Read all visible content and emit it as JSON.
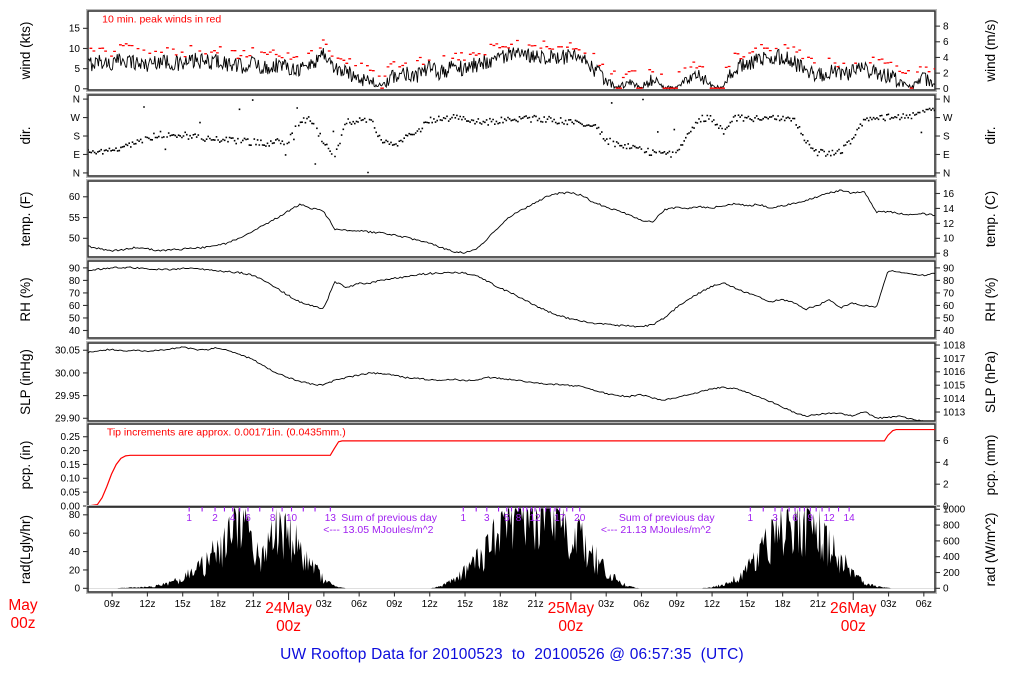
{
  "title": "UW Rooftop Data for 20100523  to  20100526 @ 06:57:35  (UTC)",
  "clipped_left_date": {
    "line1": "May",
    "line2": "00z"
  },
  "colors": {
    "red": "#FF0000",
    "purple": "#A020F0",
    "blue": "#0B0BDC",
    "black": "#000000",
    "frame": "#333333"
  },
  "chart_data": {
    "type": "line",
    "subtype": "multi-panel-meteogram",
    "x_axis": {
      "t_min": 0,
      "t_max": 72,
      "hour_ticks": [
        [
          2.05,
          "09z"
        ],
        [
          5.05,
          "12z"
        ],
        [
          8.05,
          "15z"
        ],
        [
          11.05,
          "18z"
        ],
        [
          14.05,
          "21z"
        ],
        [
          20.05,
          "03z"
        ],
        [
          23.05,
          "06z"
        ],
        [
          26.05,
          "09z"
        ],
        [
          29.05,
          "12z"
        ],
        [
          32.05,
          "15z"
        ],
        [
          35.05,
          "18z"
        ],
        [
          38.05,
          "21z"
        ],
        [
          44.05,
          "03z"
        ],
        [
          47.05,
          "06z"
        ],
        [
          50.05,
          "09z"
        ],
        [
          53.05,
          "12z"
        ],
        [
          56.05,
          "15z"
        ],
        [
          59.05,
          "18z"
        ],
        [
          62.05,
          "21z"
        ],
        [
          68.05,
          "03z"
        ],
        [
          71.05,
          "06z"
        ]
      ],
      "date_ticks": [
        [
          17.05,
          "24May",
          "00z"
        ],
        [
          41.05,
          "25May",
          "00z"
        ],
        [
          65.05,
          "26May",
          "00z"
        ]
      ]
    },
    "panels": [
      {
        "id": "wind",
        "left_label": "wind (kts)",
        "right_label": "wind (m/s)",
        "vmin": -0.3,
        "vmax": 19.3,
        "rvmin": -0.154,
        "rvmax": 9.93,
        "lticks": [
          [
            0,
            "0"
          ],
          [
            5,
            "5"
          ],
          [
            10,
            "10"
          ],
          [
            15,
            "15"
          ]
        ],
        "rticks": [
          [
            0,
            "0"
          ],
          [
            2,
            "2"
          ],
          [
            4,
            "4"
          ],
          [
            6,
            "6"
          ],
          [
            8,
            "8"
          ]
        ],
        "note": {
          "t": 1.2,
          "text": "10 min. peak winds in red"
        },
        "series": [
          {
            "name": "wind-sustained",
            "type": "jline",
            "key": "wind_kts",
            "amp": 2.0,
            "dt": 0.08,
            "scale_amp": true
          },
          {
            "name": "wind-10min-peaks",
            "type": "peaks",
            "key": "wind_kts",
            "dt": 0.25
          }
        ]
      },
      {
        "id": "dir",
        "left_label": "dir.",
        "right_label": "dir.",
        "vmin": -15,
        "vmax": 380,
        "rvmin": -15,
        "rvmax": 380,
        "lticks": [
          [
            360,
            "N"
          ],
          [
            270,
            "W"
          ],
          [
            180,
            "S"
          ],
          [
            90,
            "E"
          ],
          [
            0,
            "N"
          ]
        ],
        "rticks": [
          [
            360,
            "N"
          ],
          [
            270,
            "W"
          ],
          [
            180,
            "S"
          ],
          [
            90,
            "E"
          ],
          [
            0,
            "N"
          ]
        ],
        "series": [
          {
            "name": "wind-direction",
            "type": "scatter",
            "key": "dir_deg",
            "amp": 16,
            "dt": 0.14,
            "outlier": 0.035
          }
        ]
      },
      {
        "id": "temp",
        "left_label": "temp. (F)",
        "right_label": "temp. (C)",
        "vmin": 45.5,
        "vmax": 63.8,
        "rvmin": 7.5,
        "rvmax": 17.67,
        "lticks": [
          [
            50,
            "50"
          ],
          [
            55,
            "55"
          ],
          [
            60,
            "60"
          ]
        ],
        "rticks": [
          [
            8,
            "8"
          ],
          [
            10,
            "10"
          ],
          [
            12,
            "12"
          ],
          [
            14,
            "14"
          ],
          [
            16,
            "16"
          ]
        ],
        "series": [
          {
            "name": "temperature",
            "type": "jline",
            "key": "temp_f",
            "amp": 0.22,
            "dt": 0.15
          }
        ]
      },
      {
        "id": "rh",
        "left_label": "RH (%)",
        "right_label": "RH (%)",
        "vmin": 34,
        "vmax": 95.5,
        "rvmin": 34,
        "rvmax": 95.5,
        "lticks": [
          [
            40,
            "40"
          ],
          [
            50,
            "50"
          ],
          [
            60,
            "60"
          ],
          [
            70,
            "70"
          ],
          [
            80,
            "80"
          ],
          [
            90,
            "90"
          ]
        ],
        "rticks": [
          [
            40,
            "40"
          ],
          [
            50,
            "50"
          ],
          [
            60,
            "60"
          ],
          [
            70,
            "70"
          ],
          [
            80,
            "80"
          ],
          [
            90,
            "90"
          ]
        ],
        "series": [
          {
            "name": "relative-humidity",
            "type": "jline",
            "key": "rh_pct",
            "amp": 0.7,
            "dt": 0.15
          }
        ]
      },
      {
        "id": "slp",
        "left_label": "SLP (inHg)",
        "right_label": "SLP (hPa)",
        "vmin": 29.894,
        "vmax": 30.066,
        "rvmin": 1012.33,
        "rvmax": 1018.15,
        "lticks": [
          [
            29.9,
            "29.90"
          ],
          [
            29.95,
            "29.95"
          ],
          [
            30.0,
            "30.00"
          ],
          [
            30.05,
            "30.05"
          ]
        ],
        "rticks": [
          [
            1013,
            "1013"
          ],
          [
            1014,
            "1014"
          ],
          [
            1015,
            "1015"
          ],
          [
            1016,
            "1016"
          ],
          [
            1017,
            "1017"
          ],
          [
            1018,
            "1018"
          ]
        ],
        "series": [
          {
            "name": "sea-level-pressure",
            "type": "jline",
            "key": "slp_inhg",
            "amp": 0.0016,
            "dt": 0.15
          }
        ]
      },
      {
        "id": "pcp",
        "left_label": "pcp. (in)",
        "right_label": "pcp. (mm)",
        "vmin": 0,
        "vmax": 0.296,
        "rvmin": 0,
        "rvmax": 7.52,
        "lticks": [
          [
            0,
            "0.00"
          ],
          [
            0.05,
            "0.05"
          ],
          [
            0.1,
            "0.10"
          ],
          [
            0.15,
            "0.15"
          ],
          [
            0.2,
            "0.20"
          ],
          [
            0.25,
            "0.25"
          ]
        ],
        "rticks": [
          [
            0,
            "0"
          ],
          [
            2,
            "2"
          ],
          [
            4,
            "4"
          ],
          [
            6,
            "6"
          ]
        ],
        "note": {
          "t": 1.6,
          "text": "Tip increments are approx. 0.00171in. (0.0435mm.)"
        },
        "series": [
          {
            "name": "cumulative-precip",
            "type": "points_line",
            "key": "pcp_points"
          }
        ]
      },
      {
        "id": "rad",
        "left_label": "rad(Lgly/hr)",
        "right_label": "rad (W/m^2)",
        "vmin": -4,
        "vmax": 88.5,
        "rvmin": -46.5,
        "rvmax": 1029,
        "lticks": [
          [
            0,
            "0"
          ],
          [
            20,
            "20"
          ],
          [
            40,
            "40"
          ],
          [
            60,
            "60"
          ],
          [
            80,
            "80"
          ]
        ],
        "rticks": [
          [
            0,
            "0"
          ],
          [
            200,
            "200"
          ],
          [
            400,
            "400"
          ],
          [
            600,
            "600"
          ],
          [
            800,
            "800"
          ],
          [
            1000,
            "1000"
          ]
        ],
        "mj_marks": [
          [
            8.6,
            "1"
          ],
          [
            9.7,
            ""
          ],
          [
            10.8,
            "2"
          ],
          [
            11.6,
            ""
          ],
          [
            12.3,
            "4"
          ],
          [
            12.9,
            ""
          ],
          [
            13.6,
            "6"
          ],
          [
            14.6,
            ""
          ],
          [
            15.7,
            "8"
          ],
          [
            16.5,
            ""
          ],
          [
            17.3,
            "10"
          ],
          [
            18.3,
            ""
          ],
          [
            19.3,
            ""
          ],
          [
            20.6,
            "13"
          ],
          [
            31.9,
            "1"
          ],
          [
            33.0,
            ""
          ],
          [
            33.9,
            "3"
          ],
          [
            34.9,
            ""
          ],
          [
            35.6,
            "5"
          ],
          [
            36.0,
            ""
          ],
          [
            36.6,
            "8"
          ],
          [
            37.0,
            ""
          ],
          [
            37.3,
            ""
          ],
          [
            37.7,
            ""
          ],
          [
            38.0,
            "12"
          ],
          [
            38.4,
            ""
          ],
          [
            38.9,
            ""
          ],
          [
            39.3,
            ""
          ],
          [
            39.7,
            ""
          ],
          [
            40.1,
            "17"
          ],
          [
            40.7,
            ""
          ],
          [
            41.2,
            ""
          ],
          [
            41.8,
            "20"
          ],
          [
            56.3,
            "1"
          ],
          [
            57.4,
            ""
          ],
          [
            58.4,
            "3"
          ],
          [
            59.0,
            ""
          ],
          [
            59.6,
            ""
          ],
          [
            60.1,
            "6"
          ],
          [
            60.5,
            ""
          ],
          [
            60.9,
            ""
          ],
          [
            61.4,
            "9"
          ],
          [
            61.9,
            ""
          ],
          [
            62.4,
            ""
          ],
          [
            63.0,
            "12"
          ],
          [
            63.8,
            ""
          ],
          [
            64.7,
            "14"
          ]
        ],
        "sum_labels": [
          [
            20.0,
            "Sum of previous day",
            "<--- 13.05 MJoules/m^2"
          ],
          [
            43.6,
            "Sum of previous day",
            "<--- 21.13 MJoules/m^2"
          ]
        ],
        "series": [
          {
            "name": "solar-radiation",
            "type": "area",
            "key": "rad_lgly",
            "dt": 0.1
          }
        ]
      }
    ],
    "series_data": {
      "t_step_hours": 1,
      "wind_kts": [
        6,
        7,
        6,
        7.5,
        6.5,
        6,
        7,
        6.5,
        6,
        7,
        6.5,
        7,
        6,
        5.5,
        6.5,
        5,
        6,
        5.5,
        5,
        6,
        9,
        5,
        4,
        3,
        2,
        0.5,
        3,
        4,
        3.5,
        5,
        4,
        5.5,
        5,
        6,
        7,
        8,
        8.5,
        8,
        8.5,
        8,
        7.5,
        8,
        7,
        5,
        2,
        0.3,
        1.5,
        0.3,
        2.5,
        0.3,
        0.3,
        2,
        3.5,
        0.5,
        0.3,
        5,
        6.5,
        7,
        7.5,
        8,
        6.5,
        5,
        3,
        4.5,
        3.5,
        4,
        5,
        4,
        3,
        2,
        0.3,
        2.5,
        1.5
      ],
      "dir_deg": [
        100,
        105,
        110,
        120,
        150,
        170,
        185,
        190,
        185,
        175,
        170,
        165,
        160,
        155,
        150,
        145,
        150,
        155,
        250,
        260,
        150,
        90,
        250,
        255,
        265,
        150,
        130,
        180,
        200,
        260,
        265,
        270,
        265,
        255,
        250,
        255,
        265,
        260,
        265,
        260,
        255,
        250,
        245,
        240,
        160,
        140,
        130,
        120,
        95,
        90,
        95,
        180,
        265,
        270,
        200,
        265,
        270,
        265,
        270,
        268,
        265,
        150,
        100,
        95,
        105,
        170,
        265,
        275,
        270,
        272,
        278,
        290,
        310
      ],
      "temp_f": [
        48,
        47.5,
        47,
        47.2,
        47.8,
        47.5,
        47,
        47.2,
        47.4,
        47.6,
        47.8,
        48.2,
        49,
        50.2,
        51.8,
        53.2,
        54.8,
        56.5,
        58.2,
        57.2,
        56.6,
        52.2,
        52,
        51.8,
        51.5,
        51.2,
        50.8,
        50.2,
        49.6,
        48.8,
        47.8,
        46.8,
        46.5,
        47.5,
        50,
        53,
        55.5,
        57,
        58.5,
        60,
        60.8,
        61,
        60.3,
        58.6,
        57.6,
        56.6,
        55.6,
        54.4,
        53.9,
        56.8,
        57.4,
        57.1,
        57.7,
        57.3,
        57.9,
        58.3,
        57.8,
        58.2,
        57.4,
        57.8,
        58.4,
        59,
        60,
        61,
        61.5,
        60.8,
        61.2,
        56.3,
        56.4,
        56,
        55.7,
        55.9,
        55.6
      ],
      "rh_pct": [
        88,
        89,
        90,
        90.5,
        90,
        89.5,
        89,
        88.5,
        89.5,
        90,
        88.5,
        87.5,
        87,
        86,
        84,
        80,
        74,
        68,
        63,
        60,
        57,
        79,
        74,
        77.5,
        78,
        80,
        81.5,
        83,
        84.5,
        85.5,
        86,
        86.5,
        86,
        84,
        79,
        74,
        70,
        65,
        60,
        55.5,
        52,
        49.5,
        47.5,
        45.5,
        45,
        44,
        43.8,
        43,
        44.5,
        50,
        58,
        65,
        70,
        75,
        78,
        74,
        70,
        67,
        63,
        65,
        62,
        57,
        60,
        64,
        58,
        62,
        60,
        58,
        88,
        87,
        84.5,
        84,
        86
      ],
      "slp_inhg": [
        30.045,
        30.05,
        30.052,
        30.048,
        30.05,
        30.047,
        30.05,
        30.053,
        30.057,
        30.052,
        30.05,
        30.056,
        30.048,
        30.04,
        30.03,
        30.015,
        30.0,
        29.99,
        29.982,
        29.975,
        29.973,
        29.984,
        29.99,
        29.995,
        30.0,
        29.998,
        29.995,
        29.99,
        29.988,
        29.985,
        29.983,
        29.986,
        29.983,
        29.985,
        29.99,
        29.988,
        29.985,
        29.982,
        29.978,
        29.975,
        29.975,
        29.972,
        29.97,
        29.962,
        29.955,
        29.95,
        29.948,
        29.952,
        29.945,
        29.94,
        29.945,
        29.952,
        29.958,
        29.965,
        29.968,
        29.965,
        29.958,
        29.947,
        29.937,
        29.925,
        29.913,
        29.905,
        29.908,
        29.912,
        29.91,
        29.905,
        29.915,
        29.9,
        29.902,
        29.905,
        29.898,
        29.893,
        29.888
      ],
      "pcp_points": [
        [
          0,
          0
        ],
        [
          0.8,
          0.005
        ],
        [
          1.2,
          0.03
        ],
        [
          1.6,
          0.07
        ],
        [
          2.0,
          0.115
        ],
        [
          2.4,
          0.15
        ],
        [
          2.8,
          0.172
        ],
        [
          3.2,
          0.181
        ],
        [
          3.6,
          0.183
        ],
        [
          20.6,
          0.183
        ],
        [
          20.9,
          0.205
        ],
        [
          21.3,
          0.232
        ],
        [
          21.6,
          0.235
        ],
        [
          67.7,
          0.235
        ],
        [
          68.0,
          0.255
        ],
        [
          68.4,
          0.272
        ],
        [
          68.7,
          0.276
        ],
        [
          72,
          0.276
        ]
      ],
      "rad_lgly": [
        0,
        0,
        0,
        0.5,
        1,
        1.5,
        3,
        6,
        10,
        18,
        28,
        40,
        60,
        85,
        45,
        30,
        70,
        65,
        40,
        25,
        10,
        2,
        0,
        0,
        0,
        0,
        0,
        0,
        0,
        0,
        2,
        8,
        18,
        30,
        45,
        60,
        80,
        90,
        85,
        80,
        70,
        60,
        48,
        35,
        20,
        8,
        2,
        0,
        0,
        0,
        0,
        0,
        0,
        1,
        4,
        10,
        20,
        35,
        50,
        62,
        68,
        65,
        60,
        50,
        32,
        15,
        6,
        2,
        0.5,
        0,
        0,
        0,
        0
      ]
    }
  }
}
